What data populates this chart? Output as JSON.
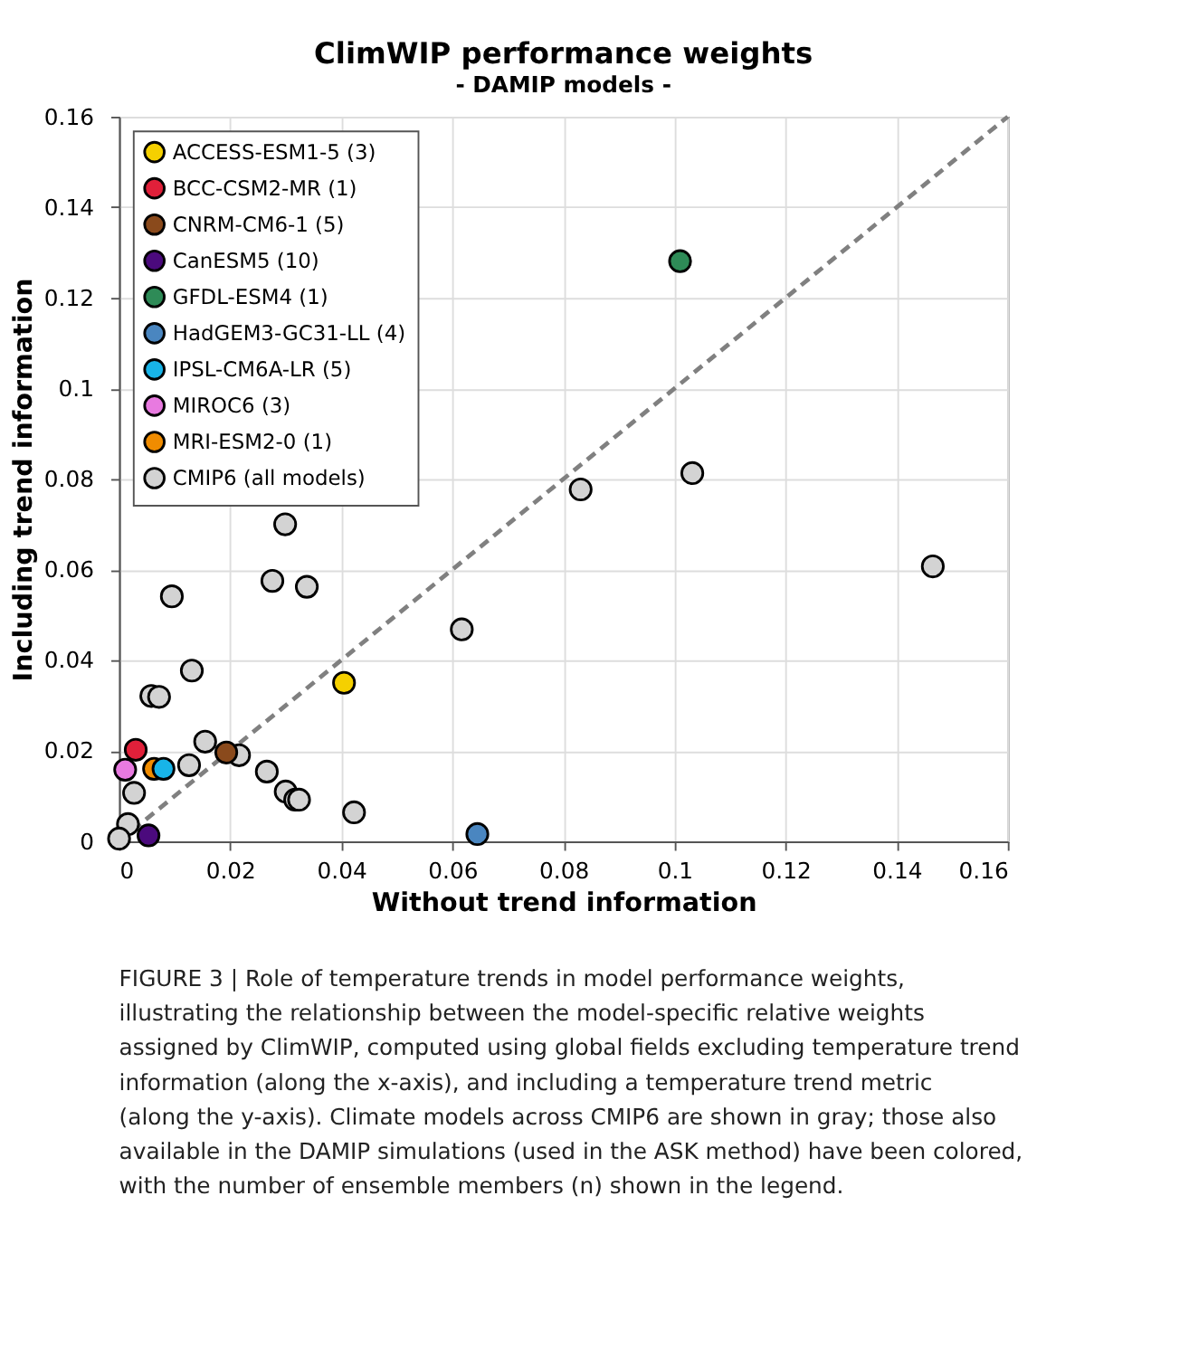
{
  "chart_data": {
    "type": "scatter",
    "title": "ClimWIP performance weights",
    "subtitle": "- DAMIP models -",
    "xlabel": "Without trend information",
    "ylabel": "Including trend information",
    "xlim": [
      0,
      0.16
    ],
    "ylim": [
      0,
      0.16
    ],
    "xticks": [
      0,
      0.02,
      0.04,
      0.06,
      0.08,
      0.1,
      0.12,
      0.14,
      0.16
    ],
    "yticks": [
      0,
      0.02,
      0.04,
      0.06,
      0.08,
      0.1,
      0.12,
      0.14,
      0.16
    ],
    "grid": true,
    "legend": "top left",
    "marker": "circle",
    "series": [
      {
        "type": "line",
        "color": "#808080",
        "line_style": "dashed",
        "marker": "none",
        "x": [
          0,
          0.16
        ],
        "values": [
          0,
          0.16
        ]
      },
      {
        "name": "ACCESS-ESM1-5 (3)",
        "color": "#f5d000",
        "x": [
          0.0405
        ],
        "values": [
          0.035
        ]
      },
      {
        "name": "BCC-CSM2-MR (1)",
        "color": "#e0203a",
        "x": [
          0.003
        ],
        "values": [
          0.0202
        ]
      },
      {
        "name": "CNRM-CM6-1 (5)",
        "color": "#8a4a1c",
        "x": [
          0.0193
        ],
        "values": [
          0.0196
        ]
      },
      {
        "name": "CanESM5 (10)",
        "color": "#4b0a7d",
        "x": [
          0.0053
        ],
        "values": [
          0.0013
        ]
      },
      {
        "name": "GFDL-ESM4 (1)",
        "color": "#2e8b57",
        "x": [
          0.101
        ],
        "values": [
          0.1281
        ]
      },
      {
        "name": "HadGEM3-GC31-LL (4)",
        "color": "#4a86c0",
        "x": [
          0.0645
        ],
        "values": [
          0.0016
        ]
      },
      {
        "name": "IPSL-CM6A-LR (5)",
        "color": "#18b4e8",
        "x": [
          0.008
        ],
        "values": [
          0.016
        ]
      },
      {
        "name": "MIROC6 (3)",
        "color": "#e87ae0",
        "x": [
          0.0011
        ],
        "values": [
          0.0158
        ]
      },
      {
        "name": "MRI-ESM2-0 (1)",
        "color": "#f08c00",
        "x": [
          0.0063
        ],
        "values": [
          0.016
        ]
      },
      {
        "name": "CMIP6 (all models)",
        "color": "#d3d3d3",
        "x": [
          0.0299,
          0.0276,
          0.0338,
          0.0095,
          0.0617,
          0.0131,
          0.0058,
          0.0072,
          0.0155,
          0.0216,
          0.0126,
          0.0266,
          0.03,
          0.0317,
          0.0324,
          0.0423,
          0.0027,
          0.0016,
          0.0,
          0.0831,
          0.1032,
          0.1465
        ],
        "values": [
          0.07,
          0.0575,
          0.0562,
          0.0541,
          0.0468,
          0.0377,
          0.0321,
          0.0319,
          0.022,
          0.019,
          0.0168,
          0.0154,
          0.011,
          0.0092,
          0.0092,
          0.0064,
          0.0107,
          0.0038,
          0.0006,
          0.0777,
          0.0813,
          0.0607
        ]
      }
    ],
    "annotations": [
      "FIGURE 3 | Role of temperature trends in model performance weights, illustrating the relationship between the model-specific relative weights assigned by ClimWIP, computed using global fields excluding temperature trend information (along the x-axis), and including a temperature trend metric (along the y-axis). Climate models across CMIP6 are shown in gray; those also available in the DAMIP simulations (used in the ASK method) have been colored, with the number of ensemble members (n) shown in the legend."
    ]
  }
}
